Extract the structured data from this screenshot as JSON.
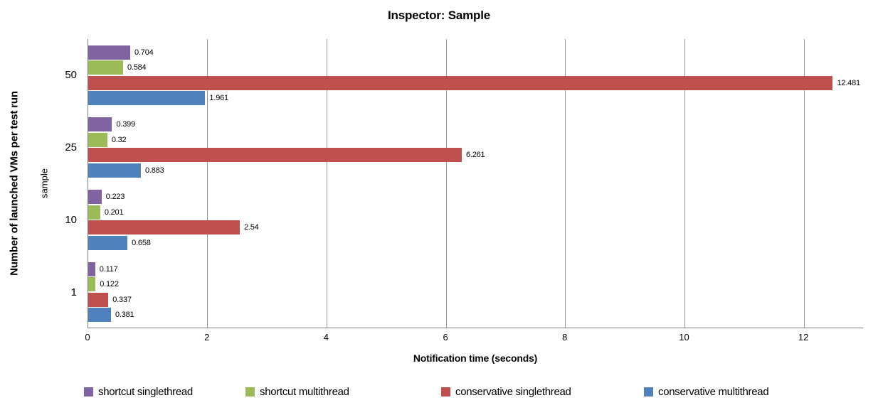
{
  "chart_data": {
    "type": "bar",
    "orientation": "horizontal",
    "title": "Inspector: Sample",
    "xlabel": "Notification time (seconds)",
    "ylabel": "Number of launched VMs per test run",
    "ylabel_secondary": "sample",
    "categories": [
      "50",
      "25",
      "10",
      "1"
    ],
    "series": [
      {
        "name": "shortcut singlethread",
        "color": "#8064A2",
        "values": [
          0.704,
          0.399,
          0.223,
          0.117
        ],
        "labels": [
          "0.704",
          "0.399",
          "0.223",
          "0.117"
        ]
      },
      {
        "name": "shortcut multithread",
        "color": "#9BBB59",
        "values": [
          0.584,
          0.32,
          0.201,
          0.122
        ],
        "labels": [
          "0.584",
          "0.32",
          "0.201",
          "0.122"
        ]
      },
      {
        "name": "conservative singlethread",
        "color": "#C0504D",
        "values": [
          12.481,
          6.261,
          2.54,
          0.337
        ],
        "labels": [
          "12.481",
          "6.261",
          "2.54",
          "0.337"
        ]
      },
      {
        "name": "conservative multithread",
        "color": "#4F81BD",
        "values": [
          1.961,
          0.883,
          0.658,
          0.381
        ],
        "labels": [
          "1.961",
          "0.883",
          "0.658",
          "0.381"
        ]
      }
    ],
    "xlim": [
      0,
      13
    ],
    "xticks": [
      "0",
      "2",
      "4",
      "6",
      "8",
      "10",
      "12"
    ],
    "grid": "vertical-gridlines",
    "legend_position": "bottom",
    "colors": {
      "gridline": "#969696",
      "axis_line": "#808080",
      "label_text": "#000000"
    }
  }
}
